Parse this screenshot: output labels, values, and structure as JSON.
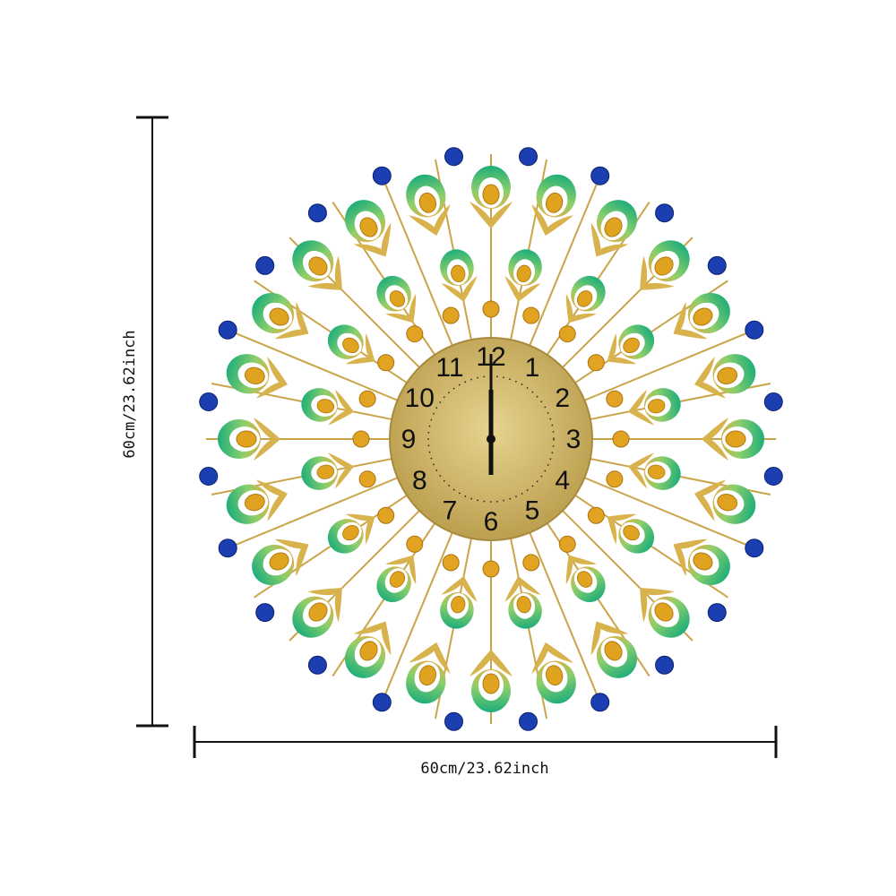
{
  "dimensions": {
    "height_label": "60cm/23.62inch",
    "width_label": "60cm/23.62inch"
  },
  "clock": {
    "numerals": [
      "12",
      "1",
      "2",
      "3",
      "4",
      "5",
      "6",
      "7",
      "8",
      "9",
      "10",
      "11"
    ]
  }
}
